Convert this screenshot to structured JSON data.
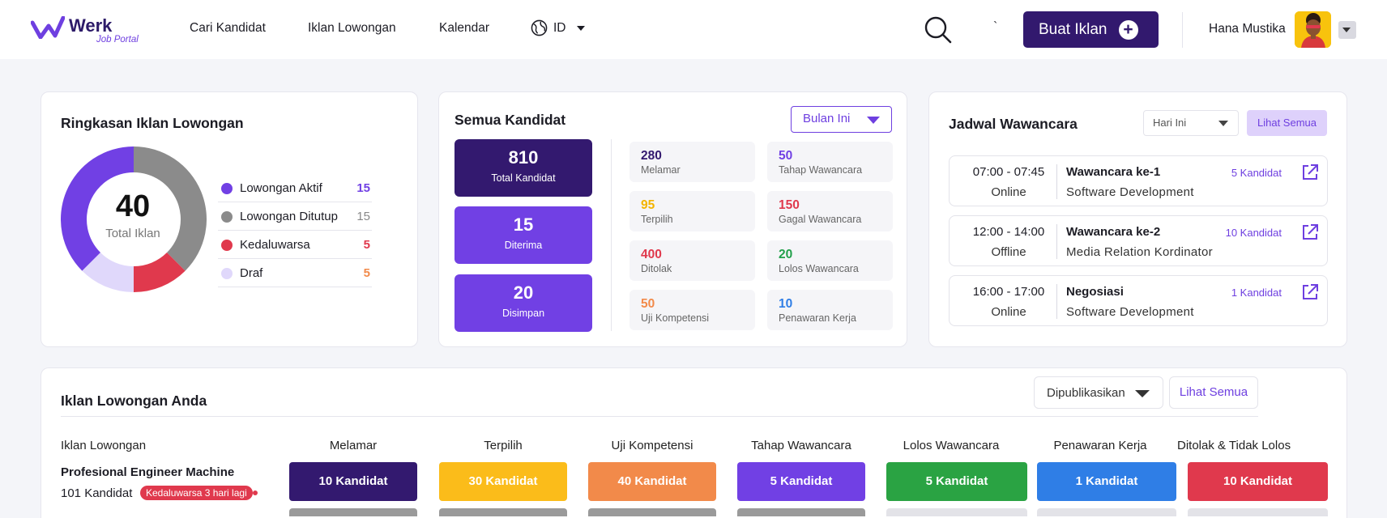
{
  "brand": {
    "name": "Werk",
    "tagline": "Job Portal",
    "accent": "#6e3fe0",
    "dark": "#32196e"
  },
  "nav": {
    "links": [
      "Cari Kandidat",
      "Iklan Lowongan",
      "Kalendar"
    ],
    "language": "ID",
    "tick": "`"
  },
  "header": {
    "create_button": "Buat Iklan",
    "user_name": "Hana Mustika"
  },
  "summary": {
    "title": "Ringkasan Iklan Lowongan",
    "total": "40",
    "total_label": "Total Iklan",
    "items": [
      {
        "label": "Lowongan Aktif",
        "value": "15",
        "color": "#7140e4"
      },
      {
        "label": "Lowongan Ditutup",
        "value": "15",
        "color": "#8b8b8b"
      },
      {
        "label": "Kedaluwarsa",
        "value": "5",
        "color": "#e0394d"
      },
      {
        "label": "Draf",
        "value": "5",
        "color": "#e0d8fb"
      }
    ]
  },
  "candidates": {
    "title": "Semua Kandidat",
    "period": "Bulan Ini",
    "main_stats": [
      {
        "value": "810",
        "label": "Total Kandidat",
        "color": "#33196f"
      },
      {
        "value": "15",
        "label": "Diterima",
        "color": "#7140e4"
      },
      {
        "value": "20",
        "label": "Disimpan",
        "color": "#7140e4"
      }
    ],
    "stats": [
      {
        "value": "280",
        "label": "Melamar",
        "color": "#33196f"
      },
      {
        "value": "50",
        "label": "Tahap Wawancara",
        "color": "#7140e4"
      },
      {
        "value": "95",
        "label": "Terpilih",
        "color": "#f4b400"
      },
      {
        "value": "150",
        "label": "Gagal Wawancara",
        "color": "#e0394d"
      },
      {
        "value": "400",
        "label": "Ditolak",
        "color": "#e0394d"
      },
      {
        "value": "20",
        "label": "Lolos Wawancara",
        "color": "#22a04b"
      },
      {
        "value": "50",
        "label": "Uji Kompetensi",
        "color": "#f28a4a"
      },
      {
        "value": "10",
        "label": "Penawaran Kerja",
        "color": "#2f7ee6"
      }
    ]
  },
  "schedule": {
    "title": "Jadwal Wawancara",
    "filter": "Hari Ini",
    "see_all": "Lihat Semua",
    "items": [
      {
        "time": "07:00 - 07:45",
        "mode": "Online",
        "title": "Wawancara ke-1",
        "subtitle": "Software Development",
        "count": "5 Kandidat"
      },
      {
        "time": "12:00 - 14:00",
        "mode": "Offline",
        "title": "Wawancara ke-2",
        "subtitle": "Media Relation Kordinator",
        "count": "10 Kandidat"
      },
      {
        "time": "16:00 - 17:00",
        "mode": "Online",
        "title": "Negosiasi",
        "subtitle": "Software Development",
        "count": "1 Kandidat"
      }
    ]
  },
  "jobs": {
    "title": "Iklan Lowongan Anda",
    "filter": "Dipublikasikan",
    "see_all": "Lihat Semua",
    "columns": [
      "Iklan Lowongan",
      "Melamar",
      "Terpilih",
      "Uji Kompetensi",
      "Tahap Wawancara",
      "Lolos Wawancara",
      "Penawaran Kerja",
      "Ditolak & Tidak Lolos"
    ],
    "rows": [
      {
        "title": "Profesional Engineer Machine",
        "count": "101 Kandidat",
        "badge": "Kedaluwarsa 3 hari lagi",
        "cells": [
          {
            "text": "10  Kandidat",
            "color": "#33196f"
          },
          {
            "text": "30  Kandidat",
            "color": "#fbbc1a"
          },
          {
            "text": "40  Kandidat",
            "color": "#f28a4a"
          },
          {
            "text": "5  Kandidat",
            "color": "#7140e4"
          },
          {
            "text": "5  Kandidat",
            "color": "#2aa343"
          },
          {
            "text": "1  Kandidat",
            "color": "#2f7ee6"
          },
          {
            "text": "10  Kandidat",
            "color": "#e0394d"
          }
        ]
      }
    ]
  }
}
